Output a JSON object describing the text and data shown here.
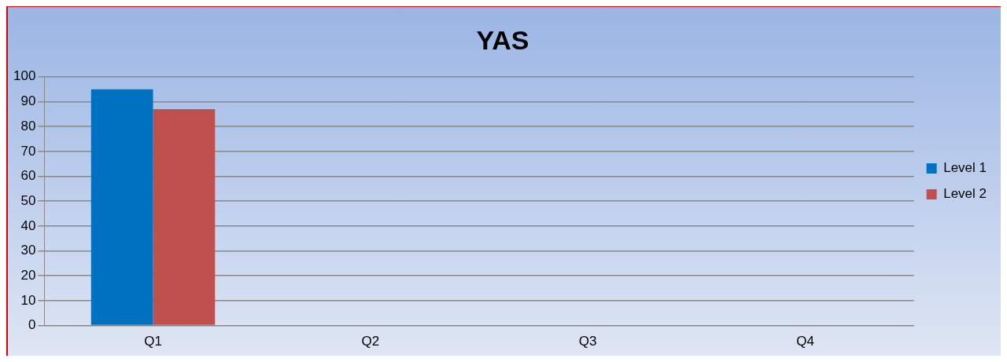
{
  "chart_data": {
    "type": "bar",
    "title": "YAS",
    "categories": [
      "Q1",
      "Q2",
      "Q3",
      "Q4"
    ],
    "series": [
      {
        "name": "Level 1",
        "color": "#0070c0",
        "values": [
          95,
          null,
          null,
          null
        ]
      },
      {
        "name": "Level 2",
        "color": "#c0504d",
        "values": [
          87,
          null,
          null,
          null
        ]
      }
    ],
    "ylim": [
      0,
      100
    ],
    "yticks": [
      0,
      10,
      20,
      30,
      40,
      50,
      60,
      70,
      80,
      90,
      100
    ],
    "grid": "y",
    "legend": "right"
  }
}
